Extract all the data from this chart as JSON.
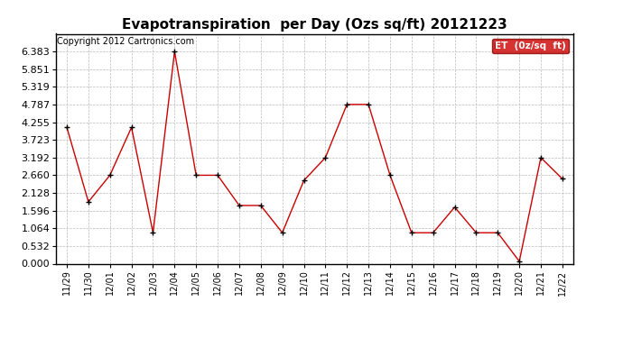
{
  "title": "Evapotranspiration  per Day (Ozs sq/ft) 20121223",
  "copyright": "Copyright 2012 Cartronics.com",
  "legend_label": "ET  (0z/sq  ft)",
  "x_labels": [
    "11/29",
    "11/30",
    "12/01",
    "12/02",
    "12/03",
    "12/04",
    "12/05",
    "12/06",
    "12/07",
    "12/08",
    "12/09",
    "12/10",
    "12/11",
    "12/12",
    "12/13",
    "12/14",
    "12/15",
    "12/16",
    "12/17",
    "12/18",
    "12/19",
    "12/20",
    "12/21",
    "12/22"
  ],
  "y_values": [
    4.1,
    1.86,
    2.66,
    4.1,
    0.93,
    6.38,
    2.66,
    2.66,
    1.75,
    1.75,
    0.93,
    2.5,
    3.19,
    4.79,
    4.79,
    2.66,
    0.93,
    0.93,
    1.7,
    0.93,
    0.93,
    0.07,
    3.19,
    2.55
  ],
  "ylim": [
    0.0,
    6.916
  ],
  "yticks": [
    0.0,
    0.532,
    1.064,
    1.596,
    2.128,
    2.66,
    3.192,
    3.723,
    4.255,
    4.787,
    5.319,
    5.851,
    6.383
  ],
  "line_color": "#cc0000",
  "marker_color": "#000000",
  "bg_color": "#ffffff",
  "grid_color": "#bbbbbb",
  "legend_bg": "#cc0000",
  "legend_text_color": "#ffffff",
  "title_fontsize": 11,
  "copyright_fontsize": 7,
  "tick_fontsize": 7,
  "ytick_fontsize": 8
}
